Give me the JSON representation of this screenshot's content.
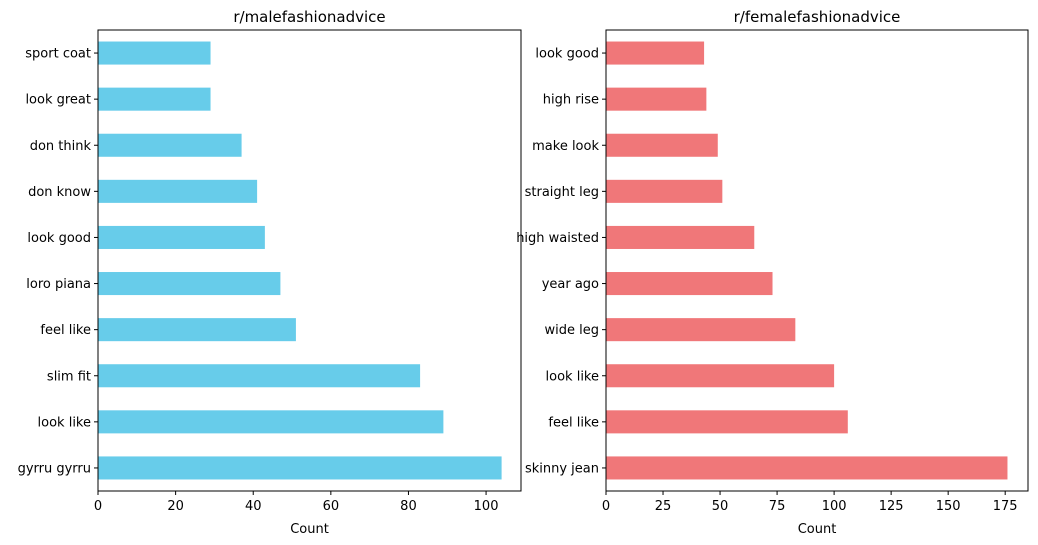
{
  "chart_data": [
    {
      "type": "bar",
      "orientation": "horizontal",
      "title": "r/malefashionadvice",
      "xlabel": "Count",
      "ylabel": "",
      "color": "#67CCEA",
      "xlim": [
        0,
        109
      ],
      "xticks": [
        0,
        20,
        40,
        60,
        80,
        100
      ],
      "categories": [
        "gyrru gyrru",
        "look like",
        "slim fit",
        "feel like",
        "loro piana",
        "look good",
        "don know",
        "don think",
        "look great",
        "sport coat"
      ],
      "values": [
        104,
        89,
        83,
        51,
        47,
        43,
        41,
        37,
        29,
        29
      ]
    },
    {
      "type": "bar",
      "orientation": "horizontal",
      "title": "r/femalefashionadvice",
      "xlabel": "Count",
      "ylabel": "",
      "color": "#F07779",
      "xlim": [
        0,
        185
      ],
      "xticks": [
        0,
        25,
        50,
        75,
        100,
        125,
        150,
        175
      ],
      "categories": [
        "skinny jean",
        "feel like",
        "look like",
        "wide leg",
        "year ago",
        "high waisted",
        "straight leg",
        "make look",
        "high rise",
        "look good"
      ],
      "values": [
        176,
        106,
        100,
        83,
        73,
        65,
        51,
        49,
        44,
        43
      ]
    }
  ]
}
